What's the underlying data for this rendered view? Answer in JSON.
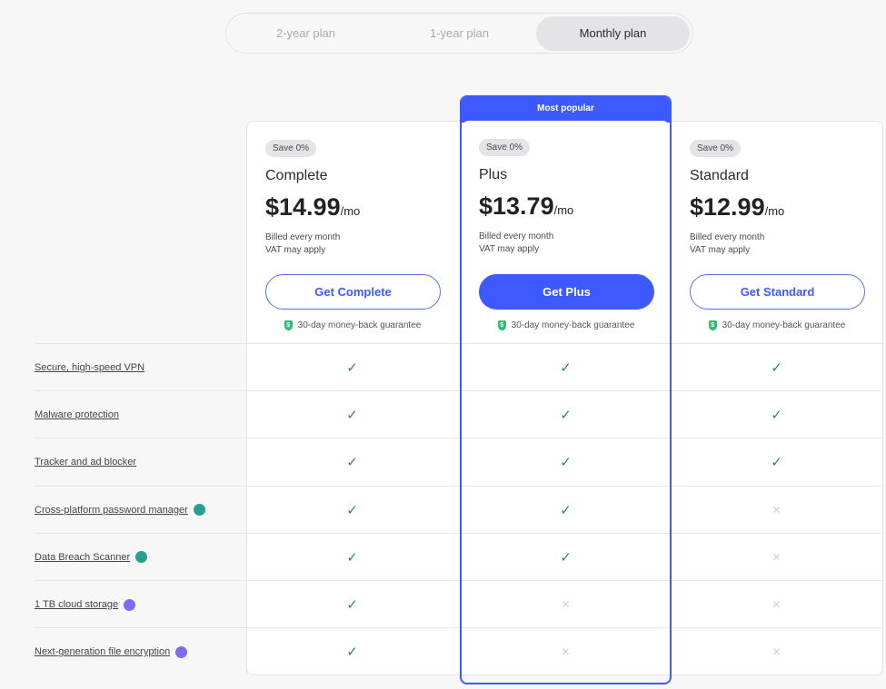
{
  "billing_toggle": {
    "options": [
      "2-year plan",
      "1-year plan",
      "Monthly plan"
    ],
    "selected": "Monthly plan"
  },
  "most_popular_label": "Most popular",
  "accent_color": "#3d5afe",
  "plans": [
    {
      "badge": "Save 0%",
      "name": "Complete",
      "price": "$14.99",
      "unit": "/mo",
      "billed": "Billed every month",
      "vat": "VAT may apply",
      "button": "Get Complete",
      "guarantee": "30-day money-back guarantee"
    },
    {
      "badge": "Save 0%",
      "name": "Plus",
      "price": "$13.79",
      "unit": "/mo",
      "billed": "Billed every month",
      "vat": "VAT may apply",
      "button": "Get Plus",
      "guarantee": "30-day money-back guarantee"
    },
    {
      "badge": "Save 0%",
      "name": "Standard",
      "price": "$12.99",
      "unit": "/mo",
      "billed": "Billed every month",
      "vat": "VAT may apply",
      "button": "Get Standard",
      "guarantee": "30-day money-back guarantee"
    }
  ],
  "features": [
    {
      "label": "Secure, high-speed VPN",
      "icon": null,
      "included": [
        true,
        true,
        true
      ]
    },
    {
      "label": "Malware protection",
      "icon": null,
      "included": [
        true,
        true,
        true
      ]
    },
    {
      "label": "Tracker and ad blocker",
      "icon": null,
      "included": [
        true,
        true,
        true
      ]
    },
    {
      "label": "Cross-platform password manager",
      "icon": "password-manager-icon",
      "icon_color": "#2a9d8f",
      "included": [
        true,
        true,
        false
      ]
    },
    {
      "label": "Data Breach Scanner",
      "icon": "password-manager-icon",
      "icon_color": "#2a9d8f",
      "included": [
        true,
        true,
        false
      ]
    },
    {
      "label": "1 TB cloud storage",
      "icon": "cloud-storage-icon",
      "icon_color": "#7b6cf0",
      "included": [
        true,
        false,
        false
      ]
    },
    {
      "label": "Next-generation file encryption",
      "icon": "cloud-storage-icon",
      "icon_color": "#7b6cf0",
      "included": [
        true,
        false,
        false
      ]
    }
  ]
}
